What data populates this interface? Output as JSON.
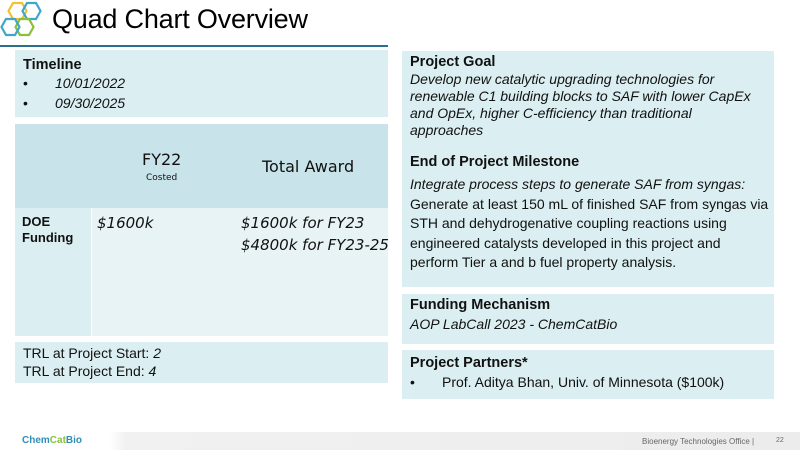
{
  "header": {
    "title": "Quad Chart Overview"
  },
  "timeline": {
    "heading": "Timeline",
    "dates": [
      "10/01/2022",
      "09/30/2025"
    ]
  },
  "funding_table": {
    "col1_title": "FY22",
    "col1_sub": "Costed",
    "col2_title": "Total Award",
    "row_label": "DOE Funding",
    "fy22_value": "$1600k",
    "total_line1": "$1600k for FY23",
    "total_line2": "$4800k for FY23-25"
  },
  "trl": {
    "start_prefix": "TRL at Project Start: ",
    "start_value": "2",
    "end_prefix": "TRL at Project End: ",
    "end_value": "4"
  },
  "goal": {
    "heading": "Project Goal",
    "text": "Develop new catalytic upgrading technologies for renewable C1 building blocks to SAF with lower CapEx and OpEx, higher C-efficiency than traditional approaches"
  },
  "milestone": {
    "heading": "End of Project Milestone",
    "lead": "Integrate process steps to generate SAF from syngas:",
    "text": " Generate at least 150 mL of finished SAF from syngas via STH and dehydrogenative coupling reactions using engineered catalysts developed in this project and perform Tier a and b fuel property analysis."
  },
  "mechanism": {
    "heading": "Funding Mechanism",
    "value": "AOP LabCall 2023 - ChemCatBio"
  },
  "partners": {
    "heading": "Project Partners*",
    "items": [
      "Prof. Aditya Bhan, Univ. of Minnesota ($100k)"
    ]
  },
  "footer": {
    "logo_a": "Chem",
    "logo_b": "Cat",
    "logo_c": "Bio",
    "office": "Bioenergy Technologies Office |",
    "page": "22"
  },
  "colors": {
    "panel": "#dbeef1",
    "accent": "#2a6f8f",
    "hex_yellow": "#f2c12e",
    "hex_blue": "#3fa6cf",
    "hex_green": "#8bbf3c"
  }
}
